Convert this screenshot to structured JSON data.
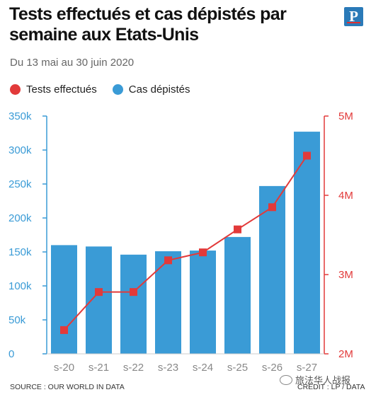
{
  "chart_data": {
    "type": "bar+line",
    "title": "Tests effectués et cas dépistés par semaine aux Etats-Unis",
    "subtitle": "Du 13 mai au 30 juin 2020",
    "categories": [
      "s-20",
      "s-21",
      "s-22",
      "s-23",
      "s-24",
      "s-25",
      "s-26",
      "s-27"
    ],
    "series": [
      {
        "name": "Cas dépistés",
        "type": "bar",
        "axis": "left",
        "values": [
          160000,
          158000,
          146000,
          151000,
          152000,
          172000,
          247000,
          327000
        ]
      },
      {
        "name": "Tests effectués",
        "type": "line",
        "axis": "right",
        "values": [
          2300000,
          2780000,
          2780000,
          3180000,
          3280000,
          3570000,
          3850000,
          4500000
        ]
      }
    ],
    "left_axis": {
      "min": 0,
      "max": 350000,
      "ticks": [
        0,
        50000,
        100000,
        150000,
        200000,
        250000,
        300000,
        350000
      ],
      "tick_labels": [
        "0",
        "50k",
        "100k",
        "150k",
        "200k",
        "250k",
        "300k",
        "350k"
      ]
    },
    "right_axis": {
      "min": 2000000,
      "max": 5000000,
      "ticks": [
        2000000,
        3000000,
        4000000,
        5000000
      ],
      "tick_labels": [
        "2M",
        "3M",
        "4M",
        "5M"
      ]
    },
    "colors": {
      "bars": "#3a9bd6",
      "line": "#e23a3a",
      "axis_left": "#3a9bd6",
      "axis_right": "#e23a3a",
      "tick_text": "#888888"
    },
    "legend_position": "top-left",
    "grid": false
  },
  "header": {
    "title": "Tests effectués et cas dépistés par semaine aux Etats-Unis",
    "logo_letter": "P"
  },
  "subtitle": "Du 13 mai au 30 juin 2020",
  "legend": {
    "tests": "Tests effectués",
    "cases": "Cas dépistés",
    "tests_color": "#e23a3a",
    "cases_color": "#3a9bd6"
  },
  "footer": {
    "source": "SOURCE : OUR WORLD IN DATA",
    "credit": "CREDIT : LP / DATA",
    "watermark": "旅法华人战报"
  }
}
